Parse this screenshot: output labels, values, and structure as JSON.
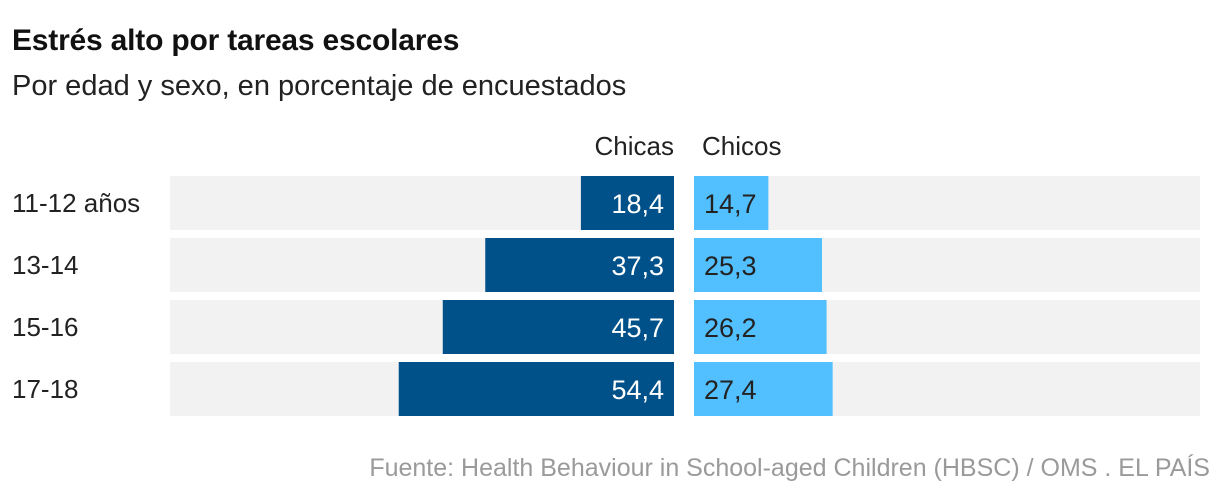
{
  "chart_data": {
    "type": "bar",
    "orientation": "horizontal-diverging",
    "title": "Estrés alto por tareas escolares",
    "subtitle": "Por edad y sexo, en porcentaje de encuestados",
    "categories": [
      "11-12 años",
      "13-14",
      "15-16",
      "17-18"
    ],
    "series": [
      {
        "name": "Chicas",
        "values": [
          18.4,
          37.3,
          45.7,
          54.4
        ],
        "labels": [
          "18,4",
          "37,3",
          "45,7",
          "54,4"
        ],
        "color": "#005189"
      },
      {
        "name": "Chicos",
        "values": [
          14.7,
          25.3,
          26.2,
          27.4
        ],
        "labels": [
          "14,7",
          "25,3",
          "26,2",
          "27,4"
        ],
        "color": "#52bfff"
      }
    ],
    "xlim": [
      0,
      100
    ],
    "grid": false,
    "background_track_color": "#f2f2f2",
    "source": "Fuente: Health Behaviour in School-aged Children (HBSC) / OMS . EL PAÍS"
  }
}
